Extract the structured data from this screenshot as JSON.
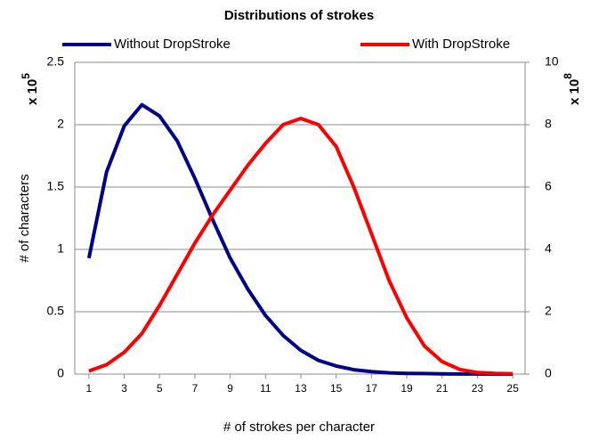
{
  "chart_data": {
    "type": "line",
    "title": "Distributions of strokes",
    "x_label": "# of strokes per character",
    "y_label": "# of characters",
    "y_multiplier": "x 10",
    "y_multiplier_exp": "5",
    "y2_multiplier": "x 10",
    "y2_multiplier_exp": "8",
    "x": [
      1,
      2,
      3,
      4,
      5,
      6,
      7,
      8,
      9,
      10,
      11,
      12,
      13,
      14,
      15,
      16,
      17,
      18,
      19,
      20,
      21,
      22,
      23,
      24,
      25
    ],
    "xlim": [
      0.2,
      25.7
    ],
    "xticks": [
      1,
      3,
      5,
      7,
      9,
      11,
      13,
      15,
      17,
      19,
      21,
      23,
      25
    ],
    "ylim": [
      0,
      2.5
    ],
    "yticks": [
      0,
      0.5,
      1,
      1.5,
      2,
      2.5
    ],
    "y2lim": [
      0,
      10
    ],
    "y2ticks": [
      0,
      2,
      4,
      6,
      8,
      10
    ],
    "grid": true,
    "series": [
      {
        "name": "Without DropStroke",
        "color": "#00008b",
        "axis": "y",
        "values": [
          0.93,
          1.62,
          1.99,
          2.16,
          2.07,
          1.87,
          1.57,
          1.24,
          0.93,
          0.68,
          0.47,
          0.31,
          0.19,
          0.11,
          0.065,
          0.035,
          0.02,
          0.01,
          0.006,
          0.004,
          0.002,
          0.001,
          0.0005,
          0,
          0
        ]
      },
      {
        "name": "With DropStroke",
        "color": "#ff0000",
        "axis": "y2",
        "values": [
          0.1,
          0.3,
          0.7,
          1.3,
          2.2,
          3.2,
          4.2,
          5.1,
          5.9,
          6.7,
          7.4,
          8.0,
          8.2,
          8.0,
          7.3,
          6.0,
          4.5,
          3.0,
          1.8,
          0.9,
          0.4,
          0.15,
          0.05,
          0.02,
          0.01
        ]
      }
    ]
  }
}
